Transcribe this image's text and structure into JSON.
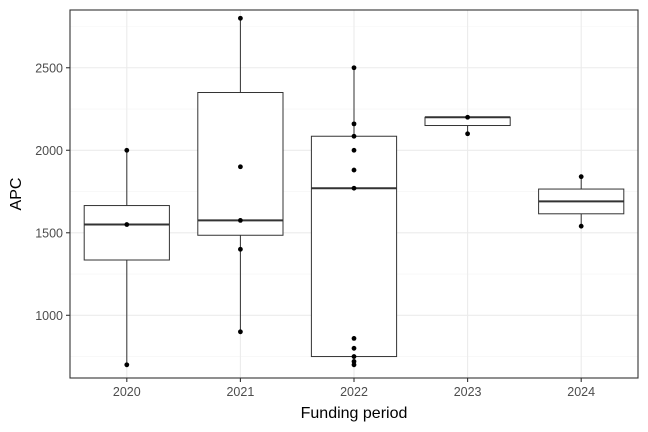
{
  "chart_data": {
    "type": "boxplot",
    "xlabel": "Funding period",
    "ylabel": "APC",
    "ylim": [
      620,
      2850
    ],
    "y_ticks": [
      1000,
      1500,
      2000,
      2500
    ],
    "grid": true,
    "categories": [
      "2020",
      "2021",
      "2022",
      "2023",
      "2024"
    ],
    "boxes": [
      {
        "category": "2020",
        "q1": 1335,
        "median": 1550,
        "q3": 1665,
        "whisker_low": 700,
        "whisker_high": 2000,
        "points": [
          2000,
          1550,
          700
        ]
      },
      {
        "category": "2021",
        "q1": 1485,
        "median": 1575,
        "q3": 2350,
        "whisker_low": 900,
        "whisker_high": 2800,
        "points": [
          2800,
          1900,
          1575,
          1400,
          900
        ]
      },
      {
        "category": "2022",
        "q1": 750,
        "median": 1770,
        "q3": 2085,
        "whisker_low": 700,
        "whisker_high": 2500,
        "points": [
          2500,
          2160,
          2085,
          2000,
          1880,
          1770,
          860,
          800,
          750,
          720,
          700
        ]
      },
      {
        "category": "2023",
        "q1": 2150,
        "median": 2200,
        "q3": 2200,
        "whisker_low": 2100,
        "whisker_high": 2200,
        "points": [
          2200,
          2100
        ]
      },
      {
        "category": "2024",
        "q1": 1615,
        "median": 1690,
        "q3": 1765,
        "whisker_low": 1540,
        "whisker_high": 1840,
        "points": [
          1840,
          1540
        ]
      }
    ]
  }
}
